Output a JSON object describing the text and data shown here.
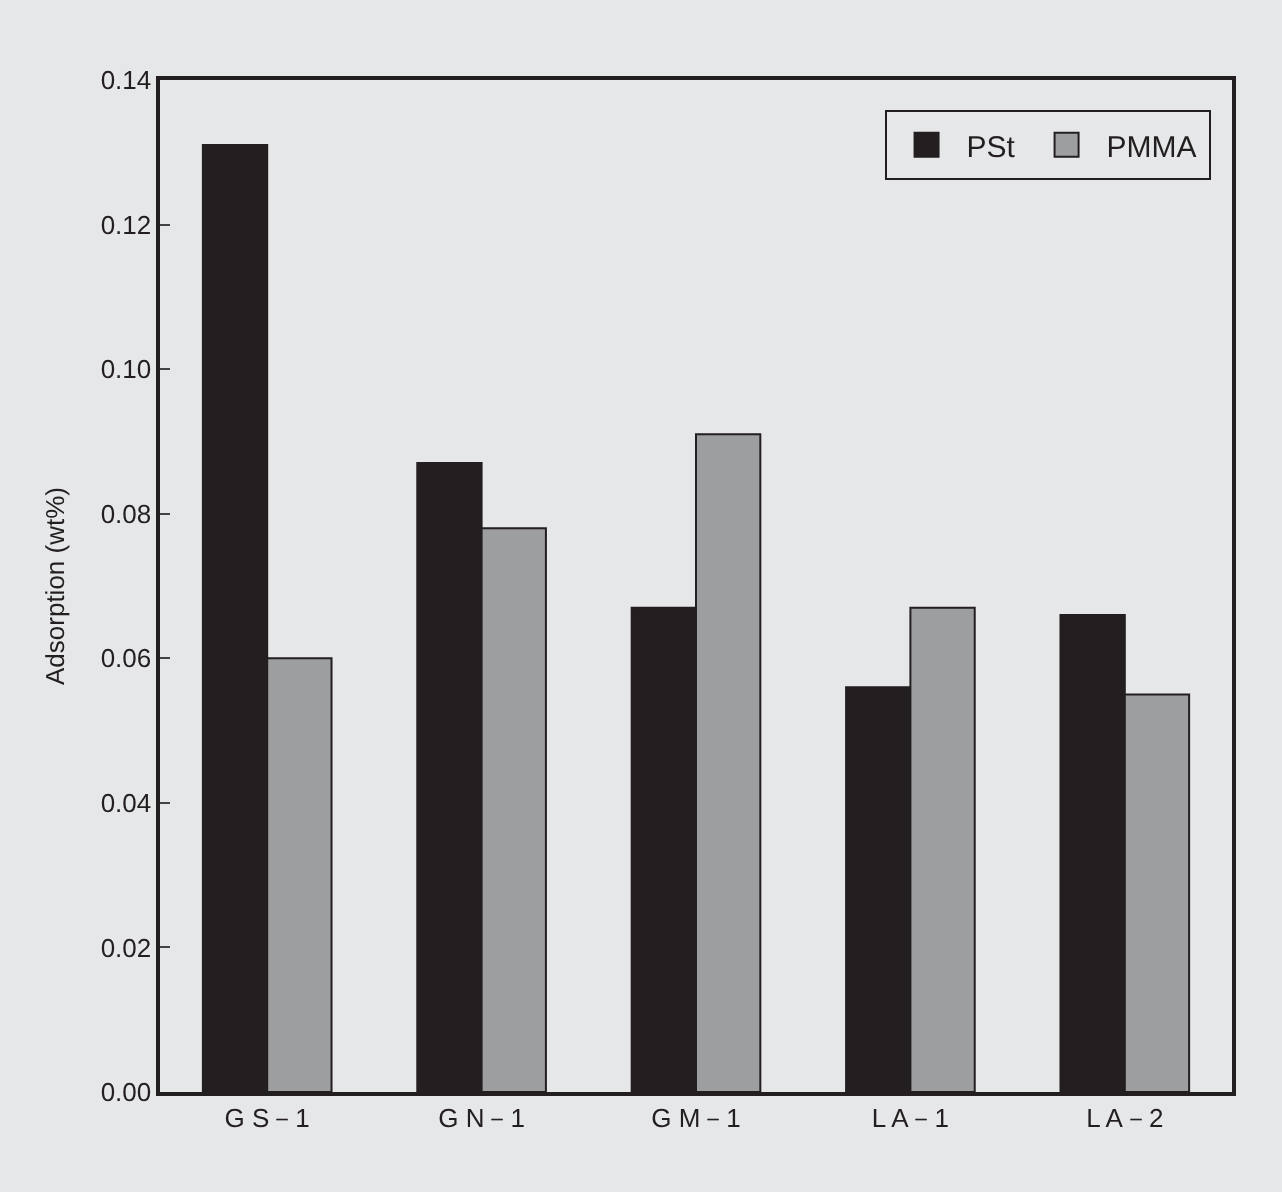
{
  "chart_data": {
    "type": "bar",
    "ylabel": "Adsorption (wt%)",
    "categories": [
      "G S－1",
      "G N－1",
      "G M－1",
      "L A－1",
      "L A－2"
    ],
    "series": [
      {
        "name": "PSt",
        "color": "#231f20",
        "values": [
          0.131,
          0.087,
          0.067,
          0.056,
          0.066
        ]
      },
      {
        "name": "PMMA",
        "color": "#9d9ea0",
        "values": [
          0.06,
          0.078,
          0.091,
          0.067,
          0.055
        ]
      }
    ],
    "ylim": [
      0,
      0.14
    ],
    "yticks": [
      {
        "value": 0,
        "label": "0.00"
      },
      {
        "value": 0.02,
        "label": "0.02"
      },
      {
        "value": 0.04,
        "label": "0.04"
      },
      {
        "value": 0.06,
        "label": "0.06"
      },
      {
        "value": 0.08,
        "label": "0.08"
      },
      {
        "value": 0.1,
        "label": "0.10"
      },
      {
        "value": 0.12,
        "label": "0.12"
      },
      {
        "value": 0.14,
        "label": "0.14"
      }
    ],
    "grid": false,
    "legend": "top right"
  }
}
